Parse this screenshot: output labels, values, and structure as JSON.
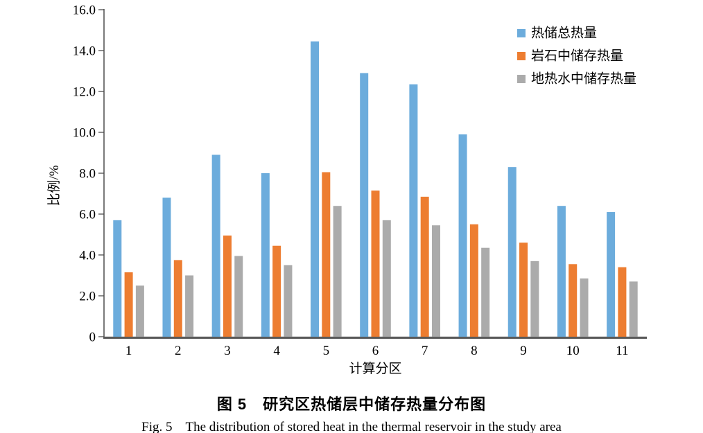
{
  "figure": {
    "caption_zh": "图 5　研究区热储层中储存热量分布图",
    "caption_en": "Fig. 5　The distribution of stored heat in the thermal reservoir in the study area"
  },
  "chart_data": {
    "type": "bar",
    "title": "",
    "categories": [
      "1",
      "2",
      "3",
      "4",
      "5",
      "6",
      "7",
      "8",
      "9",
      "10",
      "11"
    ],
    "series": [
      {
        "name": "热储总热量",
        "color": "#6CACDC",
        "values": [
          5.7,
          6.8,
          8.9,
          8.0,
          14.45,
          12.9,
          12.35,
          9.9,
          8.3,
          6.4,
          6.1
        ]
      },
      {
        "name": "岩石中储存热量",
        "color": "#ED7D31",
        "values": [
          3.15,
          3.75,
          4.95,
          4.45,
          8.05,
          7.15,
          6.85,
          5.5,
          4.6,
          3.55,
          3.4
        ]
      },
      {
        "name": "地热水中储存热量",
        "color": "#ABABAB",
        "values": [
          2.5,
          3.0,
          3.95,
          3.5,
          6.4,
          5.7,
          5.45,
          4.35,
          3.7,
          2.85,
          2.7
        ]
      }
    ],
    "xlabel": "计算分区",
    "ylabel": "比例/%",
    "ylim": [
      0,
      16
    ],
    "ytick_step": 2,
    "ytick_labels": [
      "0",
      "2.0",
      "4.0",
      "6.0",
      "8.0",
      "10.0",
      "12.0",
      "14.0",
      "16.0"
    ],
    "grid": false,
    "legend_position": "top-right",
    "axis_color": "#4d4d4d",
    "baseline_color": "#595959"
  }
}
